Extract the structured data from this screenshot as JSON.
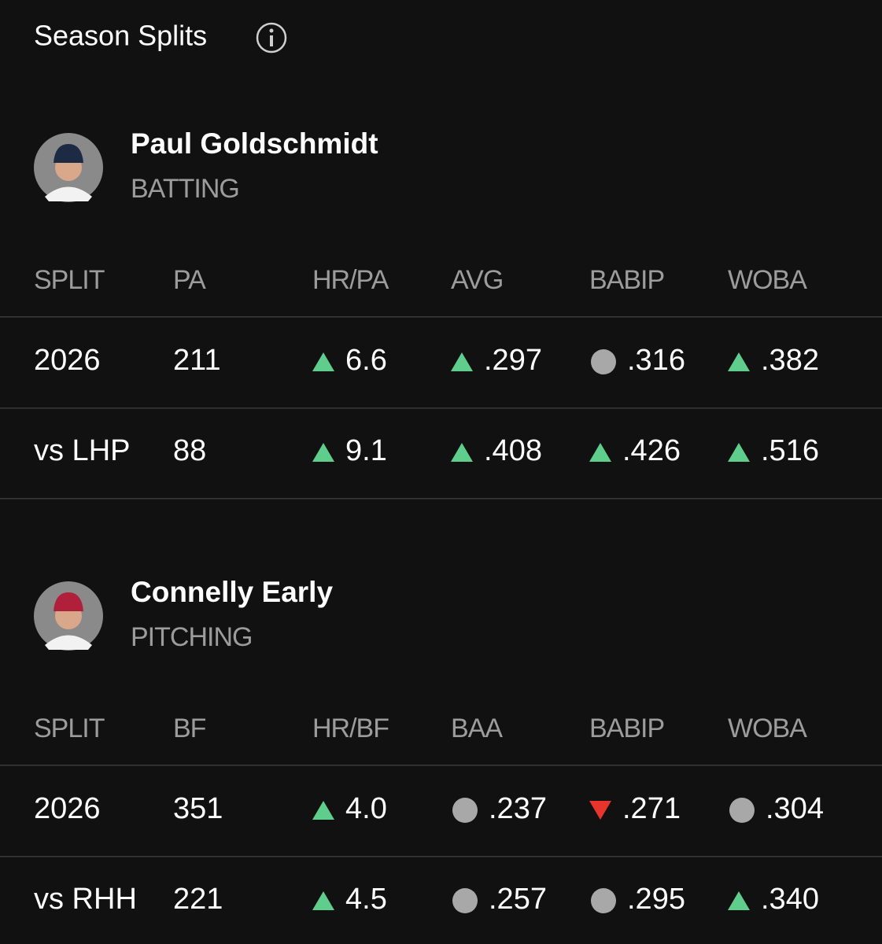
{
  "header": {
    "title": "Season Splits"
  },
  "players": [
    {
      "name": "Paul Goldschmidt",
      "role": "BATTING",
      "columns": [
        "SPLIT",
        "PA",
        "HR/PA",
        "AVG",
        "BABIP",
        "WOBA"
      ],
      "rows": [
        {
          "split": "2026",
          "count": "211",
          "stats": [
            {
              "trend": "up",
              "value": "6.6"
            },
            {
              "trend": "up",
              "value": ".297"
            },
            {
              "trend": "neutral",
              "value": ".316"
            },
            {
              "trend": "up",
              "value": ".382"
            }
          ]
        },
        {
          "split": "vs LHP",
          "count": "88",
          "stats": [
            {
              "trend": "up",
              "value": "9.1"
            },
            {
              "trend": "up",
              "value": ".408"
            },
            {
              "trend": "up",
              "value": ".426"
            },
            {
              "trend": "up",
              "value": ".516"
            }
          ]
        }
      ]
    },
    {
      "name": "Connelly Early",
      "role": "PITCHING",
      "columns": [
        "SPLIT",
        "BF",
        "HR/BF",
        "BAA",
        "BABIP",
        "WOBA"
      ],
      "rows": [
        {
          "split": "2026",
          "count": "351",
          "stats": [
            {
              "trend": "up",
              "value": "4.0"
            },
            {
              "trend": "neutral",
              "value": ".237"
            },
            {
              "trend": "down",
              "value": ".271"
            },
            {
              "trend": "neutral",
              "value": ".304"
            }
          ]
        },
        {
          "split": "vs RHH",
          "count": "221",
          "stats": [
            {
              "trend": "up",
              "value": "4.5"
            },
            {
              "trend": "neutral",
              "value": ".257"
            },
            {
              "trend": "neutral",
              "value": ".295"
            },
            {
              "trend": "up",
              "value": ".340"
            }
          ]
        }
      ]
    }
  ]
}
